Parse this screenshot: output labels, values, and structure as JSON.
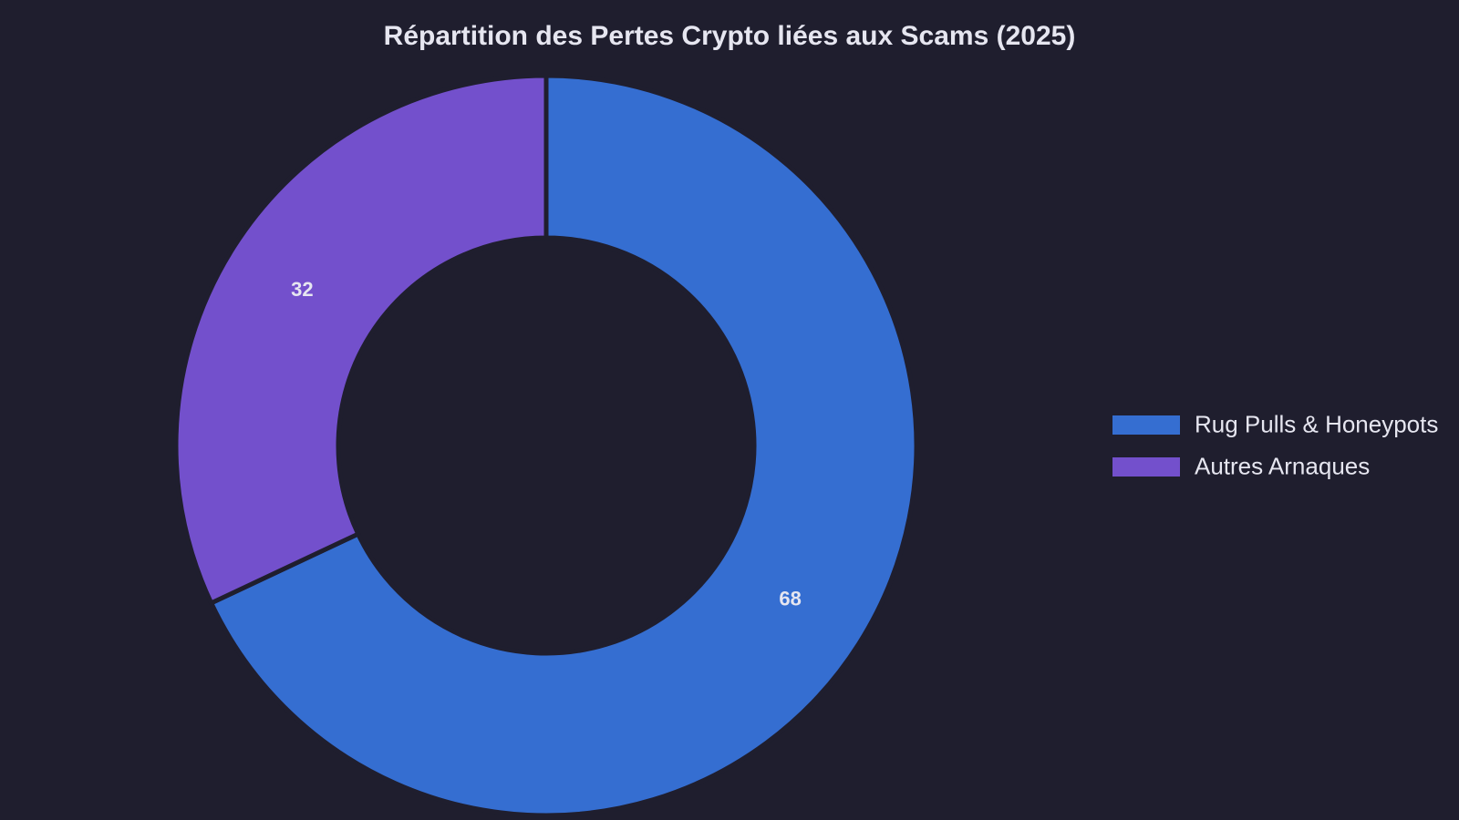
{
  "chart_data": {
    "type": "pie",
    "variant": "donut",
    "title": "Répartition des Pertes Crypto liées aux Scams (2025)",
    "categories": [
      "Rug Pulls & Honeypots",
      "Autres Arnaques"
    ],
    "values": [
      68,
      32
    ],
    "value_labels": [
      "68",
      "32"
    ],
    "colors": [
      "#356ed1",
      "#7350cc"
    ],
    "background_color": "#1f1e2e",
    "text_color": "#e6e6f0",
    "legend_position": "right",
    "start_angle_deg": 0,
    "direction": "clockwise"
  }
}
